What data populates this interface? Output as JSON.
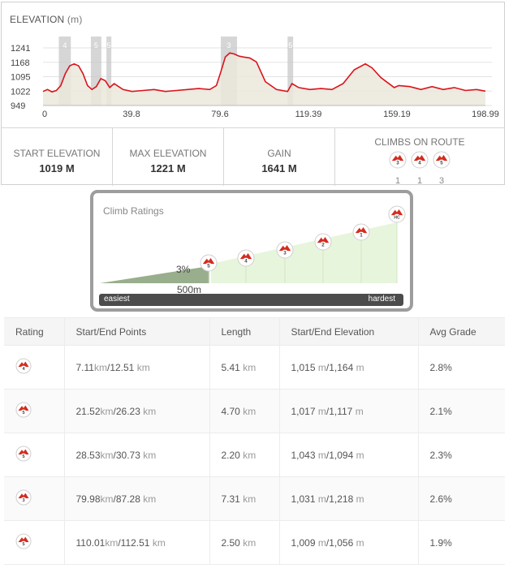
{
  "elevation": {
    "title": "ELEVATION",
    "unit": "(m)",
    "y_ticks": [
      "1241",
      "1168",
      "1095",
      "1022",
      "949"
    ],
    "x_ticks": [
      "0",
      "39.8",
      "79.6",
      "119.39",
      "159.19",
      "198.99"
    ],
    "climb_markers": [
      "4",
      "5",
      "5",
      "3",
      "5"
    ]
  },
  "stats": {
    "start_label": "START ELEVATION",
    "start_value": "1019 M",
    "max_label": "MAX ELEVATION",
    "max_value": "1221 M",
    "gain_label": "GAIN",
    "gain_value": "1641 M",
    "climbs_label": "CLIMBS ON ROUTE",
    "climbs": [
      {
        "category": "3",
        "count": "1"
      },
      {
        "category": "4",
        "count": "1"
      },
      {
        "category": "5",
        "count": "3"
      }
    ]
  },
  "climb_ratings": {
    "title": "Climb Ratings",
    "grade": "3%",
    "distance": "500m",
    "easiest": "easiest",
    "hardest": "hardest",
    "categories": [
      "5",
      "4",
      "3",
      "2",
      "1",
      "HC"
    ]
  },
  "table": {
    "headers": [
      "Rating",
      "Start/End Points",
      "Length",
      "Start/End Elevation",
      "Avg Grade"
    ],
    "rows": [
      {
        "rating": "4",
        "start": "7.11",
        "end": "12.51",
        "length": "5.41",
        "elev_start": "1,015",
        "elev_end": "1,164",
        "grade": "2.8%"
      },
      {
        "rating": "5",
        "start": "21.52",
        "end": "26.23",
        "length": "4.70",
        "elev_start": "1,017",
        "elev_end": "1,117",
        "grade": "2.1%"
      },
      {
        "rating": "5",
        "start": "28.53",
        "end": "30.73",
        "length": "2.20",
        "elev_start": "1,043",
        "elev_end": "1,094",
        "grade": "2.3%"
      },
      {
        "rating": "3",
        "start": "79.98",
        "end": "87.28",
        "length": "7.31",
        "elev_start": "1,031",
        "elev_end": "1,218",
        "grade": "2.6%"
      },
      {
        "rating": "5",
        "start": "110.01",
        "end": "112.51",
        "length": "2.50",
        "elev_start": "1,009",
        "elev_end": "1,056",
        "grade": "1.9%"
      }
    ],
    "unit_km": "km",
    "unit_m": "m"
  },
  "colors": {
    "profile_line": "#d9141b",
    "profile_fill": "#ebe7dc",
    "climb_band": "#c8c8c8",
    "rating_fill": "#e8f5dd",
    "badge_red": "#d52b1e"
  },
  "chart_data": {
    "type": "area",
    "title": "ELEVATION (m)",
    "xlabel": "",
    "ylabel": "",
    "xlim": [
      0,
      198.99
    ],
    "ylim": [
      949,
      1241
    ],
    "grid": true,
    "x": [
      0,
      2,
      4,
      6,
      8,
      10,
      12,
      14,
      16,
      18,
      20,
      22,
      24,
      26,
      28,
      30,
      32,
      34,
      36,
      40,
      45,
      50,
      55,
      60,
      65,
      70,
      75,
      78,
      80,
      82,
      84,
      86,
      88,
      90,
      93,
      96,
      100,
      105,
      110,
      112,
      115,
      120,
      125,
      130,
      135,
      140,
      145,
      148,
      152,
      155,
      158,
      160,
      165,
      170,
      175,
      180,
      185,
      190,
      195,
      198.99
    ],
    "series": [
      {
        "values": [
          1020,
          1030,
          1018,
          1025,
          1050,
          1110,
          1150,
          1160,
          1150,
          1110,
          1050,
          1030,
          1045,
          1085,
          1075,
          1040,
          1060,
          1045,
          1030,
          1020,
          1025,
          1030,
          1020,
          1025,
          1030,
          1035,
          1030,
          1050,
          1120,
          1195,
          1215,
          1210,
          1200,
          1195,
          1190,
          1170,
          1070,
          1030,
          1020,
          1060,
          1040,
          1030,
          1035,
          1030,
          1060,
          1130,
          1160,
          1140,
          1090,
          1065,
          1040,
          1050,
          1045,
          1030,
          1045,
          1030,
          1040,
          1025,
          1030,
          1022
        ]
      }
    ],
    "climb_bands": [
      [
        7.11,
        12.51
      ],
      [
        21.52,
        26.23
      ],
      [
        28.53,
        30.73
      ],
      [
        79.98,
        87.28
      ],
      [
        110.01,
        112.51
      ]
    ]
  }
}
